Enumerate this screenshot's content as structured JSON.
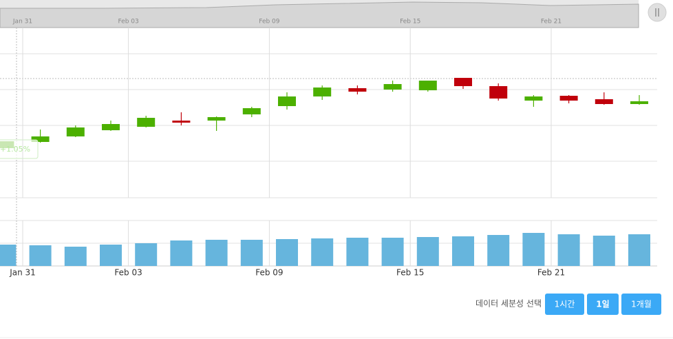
{
  "chart_data": {
    "type": "candlestick",
    "categories": [
      null,
      "Jan 31",
      null,
      null,
      "Feb 03",
      null,
      null,
      null,
      "Feb 09",
      null,
      null,
      null,
      "Feb 15",
      null,
      null,
      null,
      "Feb 21",
      null,
      null
    ],
    "open": [
      72,
      81,
      89,
      98,
      103,
      112,
      112,
      121,
      133,
      147,
      159,
      157,
      156,
      174,
      162,
      141,
      148,
      143,
      136
    ],
    "close": [
      82,
      89,
      102,
      107,
      116,
      109,
      117,
      130,
      147,
      160,
      154,
      165,
      170,
      162,
      144,
      147,
      141,
      136,
      140
    ],
    "high": [
      82,
      99,
      105,
      112,
      119,
      124,
      118,
      132,
      153,
      163,
      163,
      170,
      170,
      174,
      166,
      149,
      149,
      153,
      149
    ],
    "low": [
      72,
      80,
      88,
      97,
      102,
      105,
      97,
      117,
      128,
      142,
      150,
      154,
      154,
      158,
      141,
      132,
      137,
      135,
      135
    ],
    "up_color": "#4cb000",
    "down_color": "#c0000b",
    "ylim": [
      0,
      210
    ],
    "annotation": "+1.05%",
    "volume": {
      "type": "bar",
      "color": "#66b5dd",
      "values": [
        31,
        30,
        28,
        31,
        33,
        37,
        38,
        38,
        39,
        40,
        41,
        41,
        42,
        43,
        45,
        48,
        46,
        44,
        46
      ],
      "ylim": [
        0,
        66
      ]
    }
  },
  "navigator": {
    "labels": [
      "Jan 31",
      "Feb 03",
      "Feb 09",
      "Feb 15",
      "Feb 21"
    ]
  },
  "controls": {
    "label": "데이터 세분성 선택",
    "buttons": [
      "1시간",
      "1일",
      "1개월"
    ]
  }
}
